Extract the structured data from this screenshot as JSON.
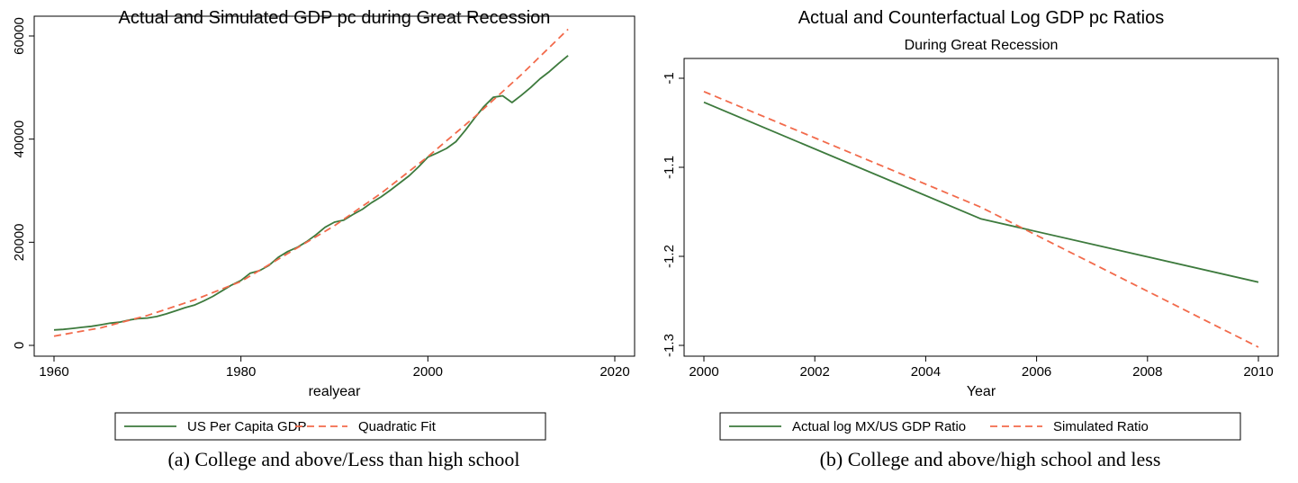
{
  "chart_data": [
    {
      "type": "line",
      "title": "Actual and Simulated GDP pc during Great Recession",
      "subtitle": "",
      "xlabel": "realyear",
      "ylabel": "",
      "xlim": [
        1960,
        2020
      ],
      "ylim": [
        0,
        60000
      ],
      "xticks": [
        1960,
        1980,
        2000,
        2020
      ],
      "yticks": [
        0,
        20000,
        40000,
        60000
      ],
      "grid": false,
      "legend_position": "bottom",
      "caption": "(a)  College and above/Less than high school",
      "series": [
        {
          "name": "US Per Capita GDP",
          "color": "#3d7a3d",
          "dash": "solid",
          "x": [
            1960,
            1961,
            1962,
            1963,
            1964,
            1965,
            1966,
            1967,
            1968,
            1969,
            1970,
            1971,
            1972,
            1973,
            1974,
            1975,
            1976,
            1977,
            1978,
            1979,
            1980,
            1981,
            1982,
            1983,
            1984,
            1985,
            1986,
            1987,
            1988,
            1989,
            1990,
            1991,
            1992,
            1993,
            1994,
            1995,
            1996,
            1997,
            1998,
            1999,
            2000,
            2001,
            2002,
            2003,
            2004,
            2005,
            2006,
            2007,
            2008,
            2009,
            2010,
            2011,
            2012,
            2013,
            2014,
            2015
          ],
          "y": [
            3000,
            3100,
            3300,
            3500,
            3700,
            4000,
            4300,
            4500,
            4900,
            5200,
            5300,
            5600,
            6100,
            6700,
            7300,
            7800,
            8600,
            9500,
            10600,
            11700,
            12600,
            14000,
            14500,
            15500,
            17100,
            18200,
            19000,
            20100,
            21400,
            22900,
            23900,
            24300,
            25400,
            26400,
            27700,
            28800,
            30100,
            31500,
            32900,
            34600,
            36500,
            37300,
            38200,
            39500,
            41700,
            44100,
            46300,
            48100,
            48400,
            47100,
            48500,
            50000,
            51700,
            53100,
            54700,
            56200
          ]
        },
        {
          "name": "Quadratic Fit",
          "color": "#f26a4b",
          "dash": "dashed",
          "x": [
            1960,
            1965,
            1970,
            1975,
            1980,
            1985,
            1990,
            1995,
            2000,
            2005,
            2010,
            2015
          ],
          "y": [
            1800,
            3400,
            5800,
            8800,
            12400,
            17800,
            23200,
            29500,
            36600,
            44300,
            52500,
            61300
          ]
        }
      ]
    },
    {
      "type": "line",
      "title": "Actual and Counterfactual Log GDP pc Ratios",
      "subtitle": "During Great Recession",
      "xlabel": "Year",
      "ylabel": "",
      "xlim": [
        2000,
        2010
      ],
      "ylim": [
        -1.3,
        -1.0
      ],
      "xticks": [
        2000,
        2002,
        2004,
        2006,
        2008,
        2010
      ],
      "yticks": [
        -1.3,
        -1.2,
        -1.1,
        -1
      ],
      "grid": false,
      "legend_position": "bottom",
      "caption": "(b) College and above/high school and less",
      "series": [
        {
          "name": "Actual log MX/US GDP Ratio",
          "color": "#3d7a3d",
          "dash": "solid",
          "x": [
            2000,
            2005,
            2010
          ],
          "y": [
            -1.027,
            -1.158,
            -1.229
          ]
        },
        {
          "name": "Simulated Ratio",
          "color": "#f26a4b",
          "dash": "dashed",
          "x": [
            2000,
            2005,
            2010
          ],
          "y": [
            -1.015,
            -1.145,
            -1.302
          ]
        }
      ]
    }
  ]
}
